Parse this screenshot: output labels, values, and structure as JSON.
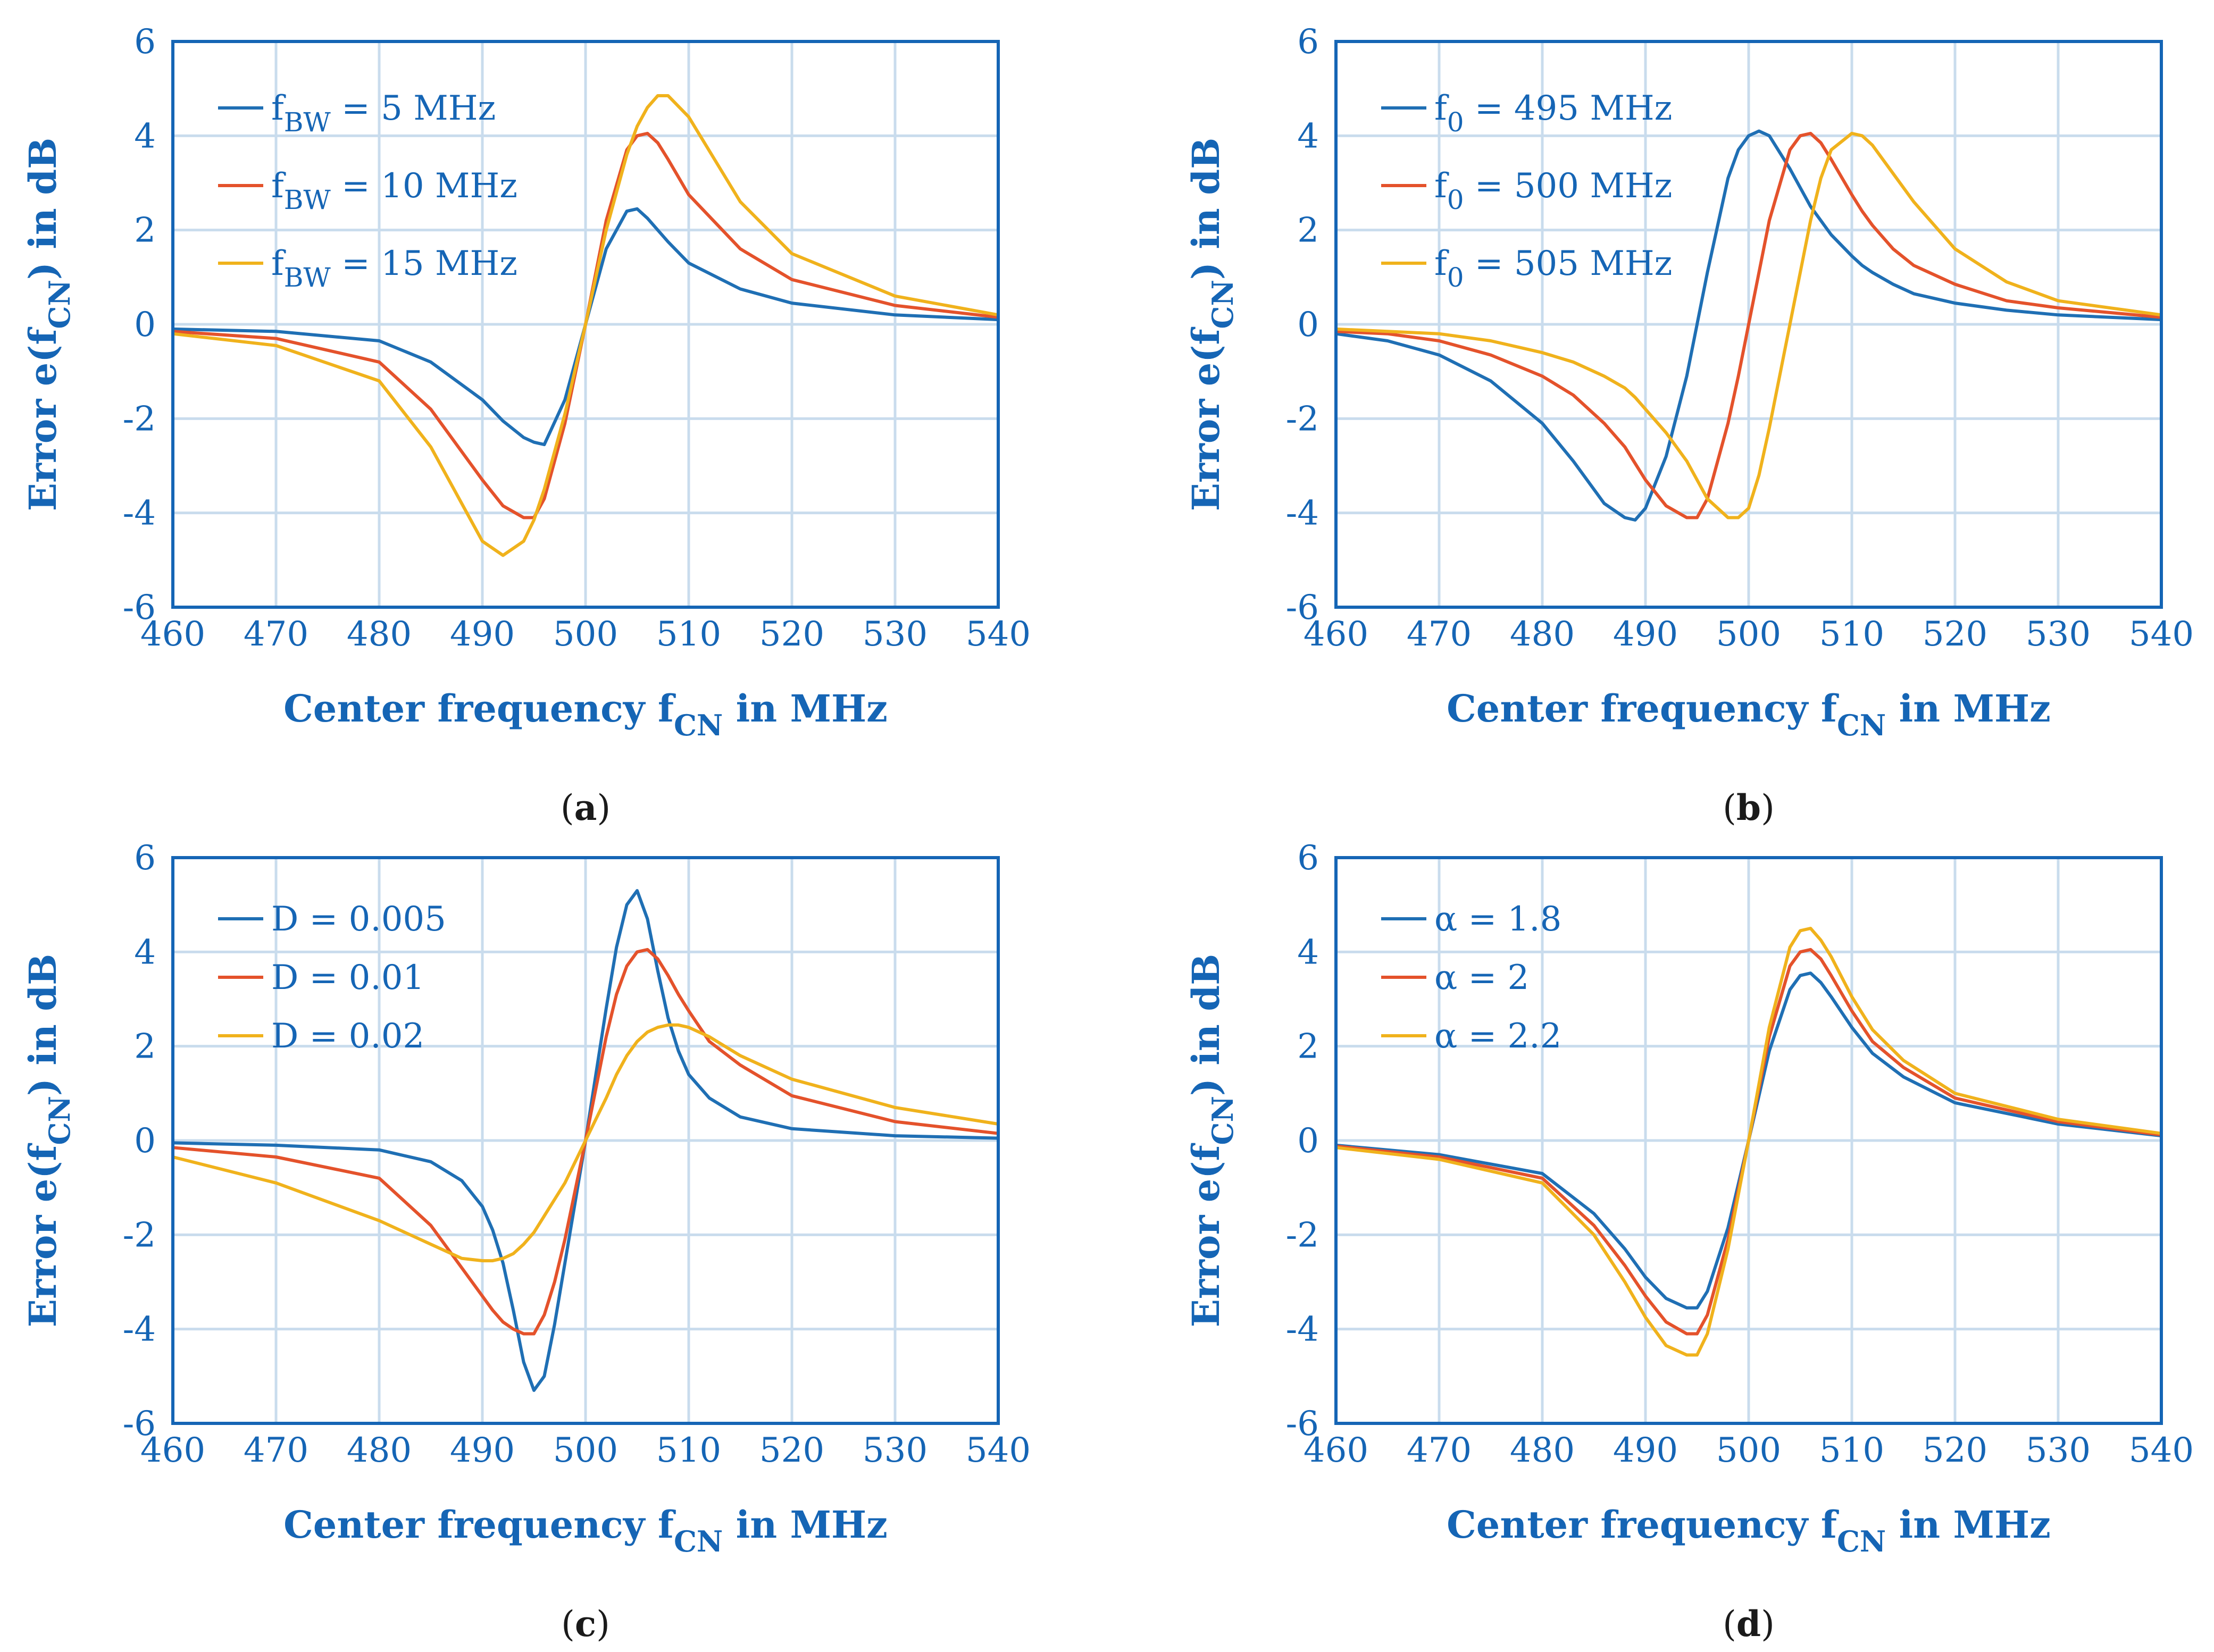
{
  "colors": {
    "axis": "#1565b5",
    "grid": "#c9dced",
    "series": [
      "#1f6fb4",
      "#e4522b",
      "#f0b21c"
    ]
  },
  "common": {
    "xlabel": {
      "main": "Center frequency f",
      "sub": "CN",
      "tail": " in MHz"
    },
    "ylabel": {
      "main": "Error e(f",
      "sub": "CN",
      "tail": ") in dB"
    },
    "xticks": [
      "460",
      "470",
      "480",
      "490",
      "500",
      "510",
      "520",
      "530",
      "540"
    ],
    "yticks": [
      "6",
      "4",
      "2",
      "0",
      "-2",
      "-4",
      "-6"
    ]
  },
  "chart_data": [
    {
      "id": "a",
      "type": "line",
      "caption": {
        "open": "(",
        "letter": "a",
        "close": ")"
      },
      "xlim": [
        460,
        540
      ],
      "ylim": [
        -6,
        6
      ],
      "xlabel": "Center frequency fCN in MHz",
      "ylabel": "Error e(fCN) in dB",
      "x": [
        460,
        470,
        480,
        485,
        490,
        492,
        494,
        495,
        496,
        498,
        500,
        502,
        504,
        505,
        506,
        507,
        508,
        510,
        515,
        520,
        530,
        540
      ],
      "series": [
        {
          "name": "f_BW = 5 MHz",
          "legend": {
            "pre": "f",
            "sub": "BW",
            "post": " = 5 MHz"
          },
          "values": [
            -0.1,
            -0.15,
            -0.35,
            -0.8,
            -1.6,
            -2.05,
            -2.4,
            -2.5,
            -2.55,
            -1.6,
            0,
            1.6,
            2.4,
            2.45,
            2.25,
            2.0,
            1.75,
            1.3,
            0.75,
            0.45,
            0.2,
            0.1
          ]
        },
        {
          "name": "f_BW = 10 MHz",
          "legend": {
            "pre": "f",
            "sub": "BW",
            "post": " = 10 MHz"
          },
          "values": [
            -0.15,
            -0.3,
            -0.8,
            -1.8,
            -3.3,
            -3.85,
            -4.1,
            -4.1,
            -3.7,
            -2.1,
            0,
            2.2,
            3.7,
            4.0,
            4.05,
            3.85,
            3.5,
            2.75,
            1.6,
            0.95,
            0.4,
            0.15
          ]
        },
        {
          "name": "f_BW = 15 MHz",
          "legend": {
            "pre": "f",
            "sub": "BW",
            "post": " = 15 MHz"
          },
          "values": [
            -0.2,
            -0.45,
            -1.2,
            -2.6,
            -4.6,
            -4.9,
            -4.6,
            -4.15,
            -3.5,
            -1.9,
            0,
            2.0,
            3.6,
            4.2,
            4.6,
            4.85,
            4.85,
            4.4,
            2.6,
            1.5,
            0.6,
            0.2
          ]
        }
      ]
    },
    {
      "id": "b",
      "type": "line",
      "caption": {
        "open": "(",
        "letter": "b",
        "close": ")"
      },
      "xlim": [
        460,
        540
      ],
      "ylim": [
        -6,
        6
      ],
      "xlabel": "Center frequency fCN in MHz",
      "ylabel": "Error e(fCN) in dB",
      "x": [
        460,
        465,
        470,
        475,
        480,
        483,
        486,
        488,
        489,
        490,
        492,
        494,
        495,
        496,
        498,
        499,
        500,
        501,
        502,
        504,
        505,
        506,
        507,
        508,
        510,
        511,
        512,
        514,
        516,
        520,
        525,
        530,
        540
      ],
      "series": [
        {
          "name": "f_0 = 495 MHz",
          "legend": {
            "pre": "f",
            "sub": "0",
            "post": " = 495 MHz"
          },
          "values": [
            -0.2,
            -0.35,
            -0.65,
            -1.2,
            -2.1,
            -2.9,
            -3.8,
            -4.1,
            -4.15,
            -3.9,
            -2.8,
            -1.1,
            0,
            1.1,
            3.1,
            3.7,
            4.0,
            4.1,
            4.0,
            3.3,
            2.9,
            2.5,
            2.2,
            1.9,
            1.45,
            1.25,
            1.1,
            0.85,
            0.65,
            0.45,
            0.3,
            0.2,
            0.1
          ]
        },
        {
          "name": "f_0 = 500 MHz",
          "legend": {
            "pre": "f",
            "sub": "0",
            "post": " = 500 MHz"
          },
          "values": [
            -0.15,
            -0.2,
            -0.35,
            -0.65,
            -1.1,
            -1.5,
            -2.1,
            -2.6,
            -2.95,
            -3.3,
            -3.85,
            -4.1,
            -4.1,
            -3.7,
            -2.1,
            -1.1,
            0,
            1.1,
            2.2,
            3.7,
            4.0,
            4.05,
            3.85,
            3.5,
            2.75,
            2.4,
            2.1,
            1.6,
            1.25,
            0.85,
            0.5,
            0.35,
            0.15
          ]
        },
        {
          "name": "f_0 = 505 MHz",
          "legend": {
            "pre": "f",
            "sub": "0",
            "post": " = 505 MHz"
          },
          "values": [
            -0.1,
            -0.15,
            -0.2,
            -0.35,
            -0.6,
            -0.8,
            -1.1,
            -1.35,
            -1.55,
            -1.8,
            -2.3,
            -2.9,
            -3.3,
            -3.7,
            -4.1,
            -4.1,
            -3.9,
            -3.2,
            -2.2,
            0,
            1.1,
            2.2,
            3.1,
            3.7,
            4.05,
            4.0,
            3.8,
            3.2,
            2.6,
            1.6,
            0.9,
            0.5,
            0.2
          ]
        }
      ]
    },
    {
      "id": "c",
      "type": "line",
      "caption": {
        "open": "(",
        "letter": "c",
        "close": ")"
      },
      "xlim": [
        460,
        540
      ],
      "ylim": [
        -6,
        6
      ],
      "xlabel": "Center frequency fCN in MHz",
      "ylabel": "Error e(fCN) in dB",
      "x": [
        460,
        470,
        480,
        485,
        488,
        490,
        491,
        492,
        493,
        494,
        495,
        496,
        497,
        498,
        500,
        502,
        503,
        504,
        505,
        506,
        507,
        508,
        509,
        510,
        512,
        515,
        520,
        530,
        540
      ],
      "series": [
        {
          "name": "D = 0.005",
          "legend": {
            "pre": "D = 0.005",
            "sub": "",
            "post": ""
          },
          "values": [
            -0.05,
            -0.1,
            -0.2,
            -0.45,
            -0.85,
            -1.4,
            -1.9,
            -2.6,
            -3.6,
            -4.7,
            -5.3,
            -5.0,
            -3.9,
            -2.6,
            0,
            2.8,
            4.1,
            5.0,
            5.3,
            4.7,
            3.6,
            2.6,
            1.9,
            1.4,
            0.9,
            0.5,
            0.25,
            0.1,
            0.05
          ]
        },
        {
          "name": "D = 0.01",
          "legend": {
            "pre": "D = 0.01",
            "sub": "",
            "post": ""
          },
          "values": [
            -0.15,
            -0.35,
            -0.8,
            -1.8,
            -2.7,
            -3.3,
            -3.6,
            -3.85,
            -4.0,
            -4.1,
            -4.1,
            -3.7,
            -3.0,
            -2.1,
            0,
            2.2,
            3.1,
            3.7,
            4.0,
            4.05,
            3.85,
            3.5,
            3.1,
            2.75,
            2.1,
            1.6,
            0.95,
            0.4,
            0.15
          ]
        },
        {
          "name": "D = 0.02",
          "legend": {
            "pre": "D = 0.02",
            "sub": "",
            "post": ""
          },
          "values": [
            -0.35,
            -0.9,
            -1.7,
            -2.2,
            -2.5,
            -2.55,
            -2.55,
            -2.5,
            -2.4,
            -2.2,
            -1.95,
            -1.6,
            -1.25,
            -0.9,
            0,
            0.9,
            1.4,
            1.8,
            2.1,
            2.3,
            2.4,
            2.45,
            2.45,
            2.4,
            2.2,
            1.8,
            1.3,
            0.7,
            0.35
          ]
        }
      ]
    },
    {
      "id": "d",
      "type": "line",
      "caption": {
        "open": "(",
        "letter": "d",
        "close": ")"
      },
      "xlim": [
        460,
        540
      ],
      "ylim": [
        -6,
        6
      ],
      "xlabel": "Center frequency fCN in MHz",
      "ylabel": "Error e(fCN) in dB",
      "x": [
        460,
        470,
        480,
        485,
        488,
        490,
        492,
        494,
        495,
        496,
        498,
        500,
        502,
        504,
        505,
        506,
        507,
        508,
        510,
        512,
        515,
        520,
        530,
        540
      ],
      "series": [
        {
          "name": "α = 1.8",
          "legend": {
            "pre": "α = 1.8",
            "sub": "",
            "post": ""
          },
          "values": [
            -0.1,
            -0.3,
            -0.7,
            -1.55,
            -2.3,
            -2.9,
            -3.35,
            -3.55,
            -3.55,
            -3.2,
            -1.85,
            0,
            1.9,
            3.2,
            3.5,
            3.55,
            3.35,
            3.05,
            2.4,
            1.85,
            1.35,
            0.8,
            0.35,
            0.1
          ]
        },
        {
          "name": "α = 2",
          "legend": {
            "pre": "α = 2",
            "sub": "",
            "post": ""
          },
          "values": [
            -0.12,
            -0.35,
            -0.8,
            -1.8,
            -2.65,
            -3.3,
            -3.85,
            -4.1,
            -4.1,
            -3.7,
            -2.1,
            0,
            2.2,
            3.7,
            4.0,
            4.05,
            3.85,
            3.5,
            2.75,
            2.1,
            1.55,
            0.9,
            0.4,
            0.12
          ]
        },
        {
          "name": "α = 2.2",
          "legend": {
            "pre": "α = 2.2",
            "sub": "",
            "post": ""
          },
          "values": [
            -0.15,
            -0.4,
            -0.9,
            -2.0,
            -3.0,
            -3.75,
            -4.35,
            -4.55,
            -4.55,
            -4.1,
            -2.3,
            0,
            2.4,
            4.1,
            4.45,
            4.5,
            4.25,
            3.9,
            3.05,
            2.35,
            1.7,
            1.0,
            0.45,
            0.15
          ]
        }
      ]
    }
  ]
}
